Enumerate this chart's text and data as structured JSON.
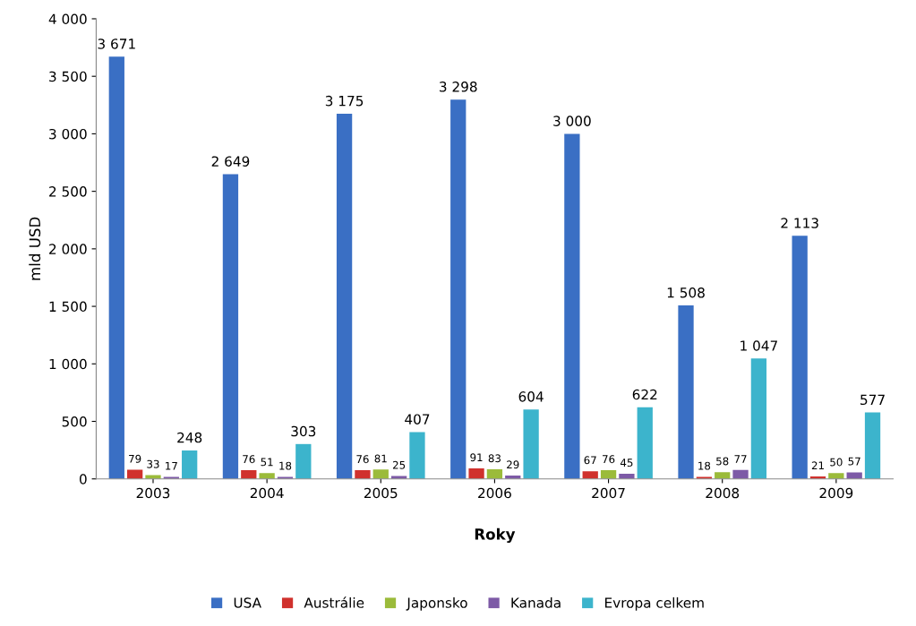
{
  "chart_data": {
    "type": "bar",
    "xlabel": "Roky",
    "ylabel": "mld USD",
    "categories": [
      "2003",
      "2004",
      "2005",
      "2006",
      "2007",
      "2008",
      "2009"
    ],
    "series": [
      {
        "name": "USA",
        "color": "#3a6fc4",
        "values": [
          3671,
          2649,
          3175,
          3298,
          3000,
          1508,
          2113
        ],
        "value_labels": [
          "3 671",
          "2 649",
          "3 175",
          "3 298",
          "3 000",
          "1 508",
          "2 113"
        ]
      },
      {
        "name": "Austrálie",
        "color": "#d0312d",
        "values": [
          79,
          76,
          76,
          91,
          67,
          18,
          21
        ],
        "value_labels": [
          "79",
          "76",
          "76",
          "91",
          "67",
          "18",
          "21"
        ]
      },
      {
        "name": "Japonsko",
        "color": "#9bbb3a",
        "values": [
          33,
          51,
          81,
          83,
          76,
          58,
          50
        ],
        "value_labels": [
          "33",
          "51",
          "81",
          "83",
          "76",
          "58",
          "50"
        ]
      },
      {
        "name": "Kanada",
        "color": "#7d5aa6",
        "values": [
          17,
          18,
          25,
          29,
          45,
          77,
          57
        ],
        "value_labels": [
          "17",
          "18",
          "25",
          "29",
          "45",
          "77",
          "57"
        ]
      },
      {
        "name": "Evropa celkem",
        "color": "#3cb4cc",
        "values": [
          248,
          303,
          407,
          604,
          622,
          1047,
          577
        ],
        "value_labels": [
          "248",
          "303",
          "407",
          "604",
          "622",
          "1 047",
          "577"
        ]
      }
    ],
    "ylim": [
      0,
      4000
    ],
    "yticks": [
      0,
      {
        "value": 500,
        "label": "500"
      },
      {
        "value": 1000,
        "label": "1 000"
      },
      {
        "value": 1500,
        "label": "1 500"
      },
      {
        "value": 2000,
        "label": "2 000"
      },
      {
        "value": 2500,
        "label": "2 500"
      },
      {
        "value": 3000,
        "label": "3 000"
      },
      {
        "value": 3500,
        "label": "3 500"
      },
      {
        "value": 4000,
        "label": "4 000"
      }
    ],
    "grid": false,
    "legend": "bottom"
  }
}
